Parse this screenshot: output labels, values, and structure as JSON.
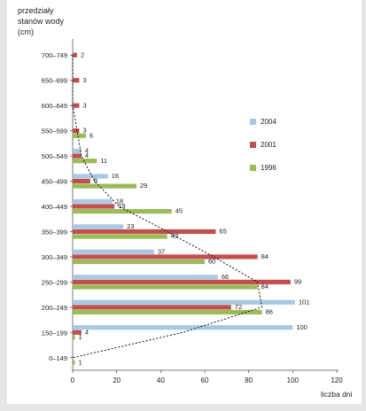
{
  "chart_data": {
    "type": "bar",
    "ylabel": [
      "przedziały",
      "stanów wody",
      "(cm)"
    ],
    "xlabel": "liczba dni",
    "xlim": [
      0,
      120
    ],
    "xticks": [
      0,
      20,
      40,
      60,
      80,
      100,
      120
    ],
    "categories": [
      "700–749",
      "650–699",
      "600–649",
      "550–599",
      "500–549",
      "450–499",
      "400–449",
      "350–399",
      "300–349",
      "250–299",
      "200–249",
      "150–199",
      "0–149"
    ],
    "series": [
      {
        "name": "2004",
        "color": "#a9c8e3",
        "values": [
          null,
          null,
          null,
          null,
          4,
          16,
          18,
          23,
          37,
          66,
          101,
          100,
          null
        ]
      },
      {
        "name": "2001",
        "color": "#c0504d",
        "values": [
          2,
          3,
          3,
          3,
          4,
          8,
          19,
          65,
          84,
          99,
          72,
          4,
          null
        ]
      },
      {
        "name": "1996",
        "color": "#9bbb59",
        "values": [
          null,
          null,
          null,
          6,
          11,
          29,
          45,
          43,
          60,
          84,
          86,
          1,
          1
        ]
      }
    ],
    "legend": "right",
    "trend": {
      "style": "dotted",
      "values": [
        0,
        0,
        0,
        2,
        4,
        10,
        21,
        43,
        64,
        84,
        86,
        50,
        0
      ]
    }
  }
}
